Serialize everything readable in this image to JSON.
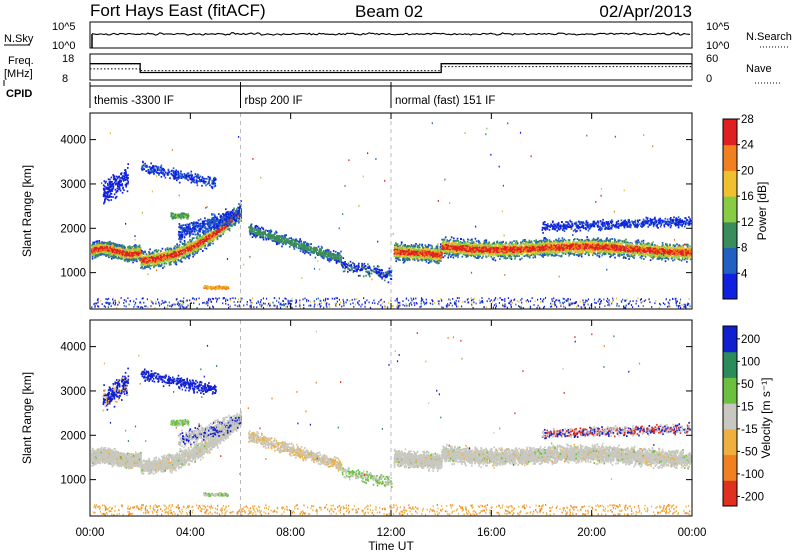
{
  "header": {
    "station": "Fort Hays East (fitACF)",
    "beam": "Beam 02",
    "date": "02/Apr/2013"
  },
  "top_panels": {
    "nsky_label": "N.Sky",
    "nsky_ticks": [
      "10^5",
      "10^0"
    ],
    "nsearch_label": "N.Search",
    "nsearch_ticks": [
      "10^5",
      "10^0"
    ],
    "freq_label_1": "Freq.",
    "freq_label_2": "[MHz]",
    "freq_ticks": [
      "18",
      "8"
    ],
    "nave_label": "Nave",
    "nave_ticks": [
      "60",
      "0"
    ],
    "cpid_label": "CPID"
  },
  "chart_data": [
    {
      "type": "heatmap",
      "name": "power",
      "ylabel": "Slant Range [km]",
      "yticks": [
        1000,
        2000,
        3000,
        4000
      ],
      "ylim": [
        180,
        4600
      ],
      "colorbar_label": "Power [dB]",
      "colorbar_ticks": [
        4,
        8,
        12,
        16,
        20,
        24,
        28
      ],
      "colorbar_colors": [
        "#1020e0",
        "#2060c0",
        "#3a8c5a",
        "#88cc44",
        "#f0c030",
        "#f08020",
        "#e02020"
      ]
    },
    {
      "type": "heatmap",
      "name": "velocity",
      "ylabel": "Slant Range [km]",
      "yticks": [
        1000,
        2000,
        3000,
        4000
      ],
      "ylim": [
        180,
        4600
      ],
      "colorbar_label": "Velocity [m s⁻¹]",
      "colorbar_ticks": [
        200,
        100,
        50,
        15,
        -15,
        -50,
        -100,
        -200
      ],
      "colorbar_colors": [
        "#1020d0",
        "#2a8c5a",
        "#6cc040",
        "#c8c8c0",
        "#f0b040",
        "#f08020",
        "#e03020"
      ]
    }
  ],
  "time_axis": {
    "xlabel": "Time UT",
    "xlim": [
      0,
      24
    ],
    "ticks": [
      0,
      4,
      8,
      12,
      16,
      20,
      24
    ],
    "tick_labels": [
      "00:00",
      "04:00",
      "08:00",
      "12:00",
      "16:00",
      "20:00",
      "00:00"
    ]
  },
  "cpid_segments": [
    {
      "start": 0,
      "end": 6,
      "label": "themis -3300 IF"
    },
    {
      "start": 6,
      "end": 12,
      "label": "rbsp 200 IF"
    },
    {
      "start": 12,
      "end": 24,
      "label": "normal (fast) 151 IF"
    }
  ],
  "freq_series": {
    "x": [
      0,
      2,
      2,
      14,
      14,
      24
    ],
    "mhz": [
      14.5,
      14.5,
      10.5,
      10.5,
      14.5,
      14.5
    ]
  },
  "nave_series": {
    "x": [
      0,
      2,
      2,
      14,
      14,
      24
    ],
    "value": [
      25,
      25,
      20,
      20,
      31,
      31
    ]
  },
  "colors": {
    "axis": "#000000",
    "dash": "#bbbbbb"
  }
}
